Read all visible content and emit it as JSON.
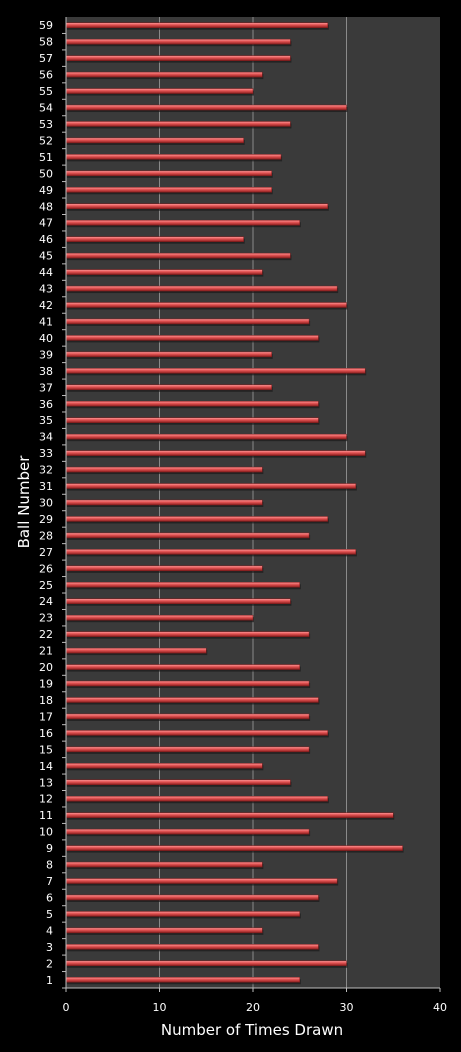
{
  "chart_data": {
    "type": "bar",
    "orientation": "horizontal",
    "xlabel": "Number of Times Drawn",
    "ylabel": "Ball Number",
    "xlim": [
      0,
      40
    ],
    "x_ticks": [
      "0",
      "10",
      "20",
      "30",
      "40"
    ],
    "grid": "vertical",
    "legend": "none",
    "colors": {
      "background": "#000000",
      "plot_area": "#3a3a3a",
      "bar": "#e05050",
      "grid": "#8a8a8a"
    },
    "categories": [
      "1",
      "2",
      "3",
      "4",
      "5",
      "6",
      "7",
      "8",
      "9",
      "10",
      "11",
      "12",
      "13",
      "14",
      "15",
      "16",
      "17",
      "18",
      "19",
      "20",
      "21",
      "22",
      "23",
      "24",
      "25",
      "26",
      "27",
      "28",
      "29",
      "30",
      "31",
      "32",
      "33",
      "34",
      "35",
      "36",
      "37",
      "38",
      "39",
      "40",
      "41",
      "42",
      "43",
      "44",
      "45",
      "46",
      "47",
      "48",
      "49",
      "50",
      "51",
      "52",
      "53",
      "54",
      "55",
      "56",
      "57",
      "58",
      "59"
    ],
    "values": [
      25,
      30,
      27,
      21,
      25,
      27,
      29,
      21,
      36,
      26,
      35,
      28,
      24,
      21,
      26,
      28,
      26,
      27,
      26,
      25,
      15,
      26,
      20,
      24,
      25,
      21,
      31,
      26,
      28,
      21,
      31,
      21,
      32,
      30,
      27,
      27,
      22,
      32,
      22,
      27,
      26,
      30,
      29,
      21,
      24,
      19,
      25,
      28,
      22,
      22,
      23,
      19,
      24,
      30,
      20,
      21,
      24,
      24,
      28
    ]
  }
}
